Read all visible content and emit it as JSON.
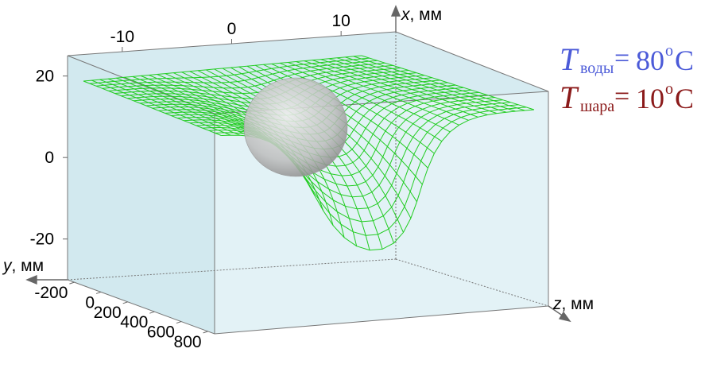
{
  "chart_data": {
    "type": "surface3d",
    "title": "",
    "axes": {
      "x": {
        "label": "x, мм",
        "ticks": [
          "-10",
          "0",
          "10"
        ],
        "range": [
          -15,
          15
        ]
      },
      "y": {
        "label": "y, мм",
        "ticks": [
          "20",
          "0",
          "-20"
        ],
        "range": [
          -30,
          25
        ]
      },
      "z": {
        "label": "z, мм",
        "ticks": [
          "-200",
          "0",
          "200",
          "400",
          "600",
          "800"
        ],
        "range": [
          -250,
          850
        ]
      }
    },
    "box_fill": "#dceef3",
    "surface_color": "#22cc22",
    "sphere_color": "#b8b8b8",
    "annotations": [
      {
        "symbol": "T",
        "subscript": "воды",
        "equals": "=",
        "value": "80",
        "unit": "C",
        "degree": "o",
        "color": "#4b5ad8"
      },
      {
        "symbol": "T",
        "subscript": "шара",
        "equals": "=",
        "value": "10",
        "unit": "C",
        "degree": "o",
        "color": "#8b1a1a"
      }
    ]
  }
}
